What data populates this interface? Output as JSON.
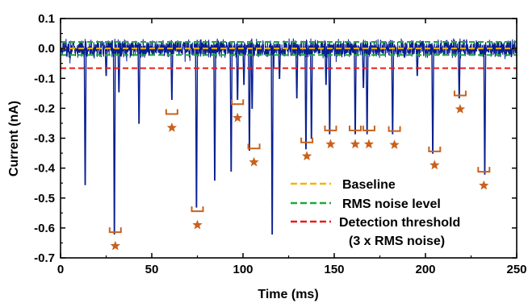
{
  "chart_data": {
    "type": "line",
    "xlabel": "Time (ms)",
    "ylabel": "Current (nA)",
    "xlim": [
      0,
      250
    ],
    "ylim": [
      -0.7,
      0.1
    ],
    "xticks": [
      "0",
      "50",
      "100",
      "150",
      "200",
      "250"
    ],
    "yticks": [
      "0.1",
      "0.0",
      "-0.1",
      "-0.2",
      "-0.3",
      "-0.4",
      "-0.5",
      "-0.6",
      "-0.7"
    ],
    "grid": false,
    "colors": {
      "trace": "#0a1f8f",
      "baseline": "#f5b30e",
      "rms": "#1fa83a",
      "threshold": "#e81b1b",
      "marker": "#c8621c"
    },
    "reference_lines": [
      {
        "name": "Baseline",
        "y": 0.0,
        "style": "dashed",
        "color": "#f5b30e"
      },
      {
        "name": "RMS noise level",
        "y": 0.022,
        "style": "dashed",
        "color": "#1fa83a"
      },
      {
        "name": "RMS noise level",
        "y": -0.022,
        "style": "dashed",
        "color": "#1fa83a"
      },
      {
        "name": "Detection threshold",
        "y": -0.066,
        "style": "dashed",
        "color": "#e81b1b"
      }
    ],
    "legend": {
      "placement": "lower-right",
      "entries": [
        {
          "label": "Baseline",
          "color": "#f5b30e"
        },
        {
          "label": "RMS noise level",
          "color": "#1fa83a"
        },
        {
          "label": "Detection threshold",
          "color": "#e81b1b"
        }
      ],
      "note": "(3 x RMS noise)"
    },
    "series": [
      {
        "values_note": "current trace with downward translocation spikes",
        "spikes": [
          {
            "x": 13.5,
            "y": -0.455
          },
          {
            "x": 25,
            "y": -0.09
          },
          {
            "x": 29.5,
            "y": -0.62
          },
          {
            "x": 32,
            "y": -0.145
          },
          {
            "x": 43,
            "y": -0.25
          },
          {
            "x": 61,
            "y": -0.17
          },
          {
            "x": 74.5,
            "y": -0.53
          },
          {
            "x": 84.5,
            "y": -0.44
          },
          {
            "x": 93.5,
            "y": -0.41
          },
          {
            "x": 97,
            "y": -0.17
          },
          {
            "x": 100.5,
            "y": -0.12
          },
          {
            "x": 103.5,
            "y": -0.34
          },
          {
            "x": 105,
            "y": -0.2
          },
          {
            "x": 116,
            "y": -0.62
          },
          {
            "x": 120,
            "y": -0.1
          },
          {
            "x": 129.5,
            "y": -0.165
          },
          {
            "x": 134.5,
            "y": -0.335
          },
          {
            "x": 137.5,
            "y": -0.3
          },
          {
            "x": 145.5,
            "y": -0.12
          },
          {
            "x": 147.5,
            "y": -0.285
          },
          {
            "x": 161.5,
            "y": -0.285
          },
          {
            "x": 166,
            "y": -0.13
          },
          {
            "x": 168,
            "y": -0.285
          },
          {
            "x": 182,
            "y": -0.285
          },
          {
            "x": 195.5,
            "y": -0.09
          },
          {
            "x": 204,
            "y": -0.35
          },
          {
            "x": 218.5,
            "y": -0.165
          },
          {
            "x": 232.5,
            "y": -0.42
          }
        ]
      }
    ],
    "markers": [
      {
        "x": 30,
        "y": -0.66
      },
      {
        "x": 61,
        "y": -0.265
      },
      {
        "x": 75,
        "y": -0.59
      },
      {
        "x": 97,
        "y": -0.232
      },
      {
        "x": 106,
        "y": -0.38
      },
      {
        "x": 135,
        "y": -0.36
      },
      {
        "x": 148,
        "y": -0.32
      },
      {
        "x": 161.5,
        "y": -0.32
      },
      {
        "x": 169,
        "y": -0.32
      },
      {
        "x": 183,
        "y": -0.322
      },
      {
        "x": 205,
        "y": -0.39
      },
      {
        "x": 219,
        "y": -0.203
      },
      {
        "x": 232,
        "y": -0.458
      }
    ]
  }
}
